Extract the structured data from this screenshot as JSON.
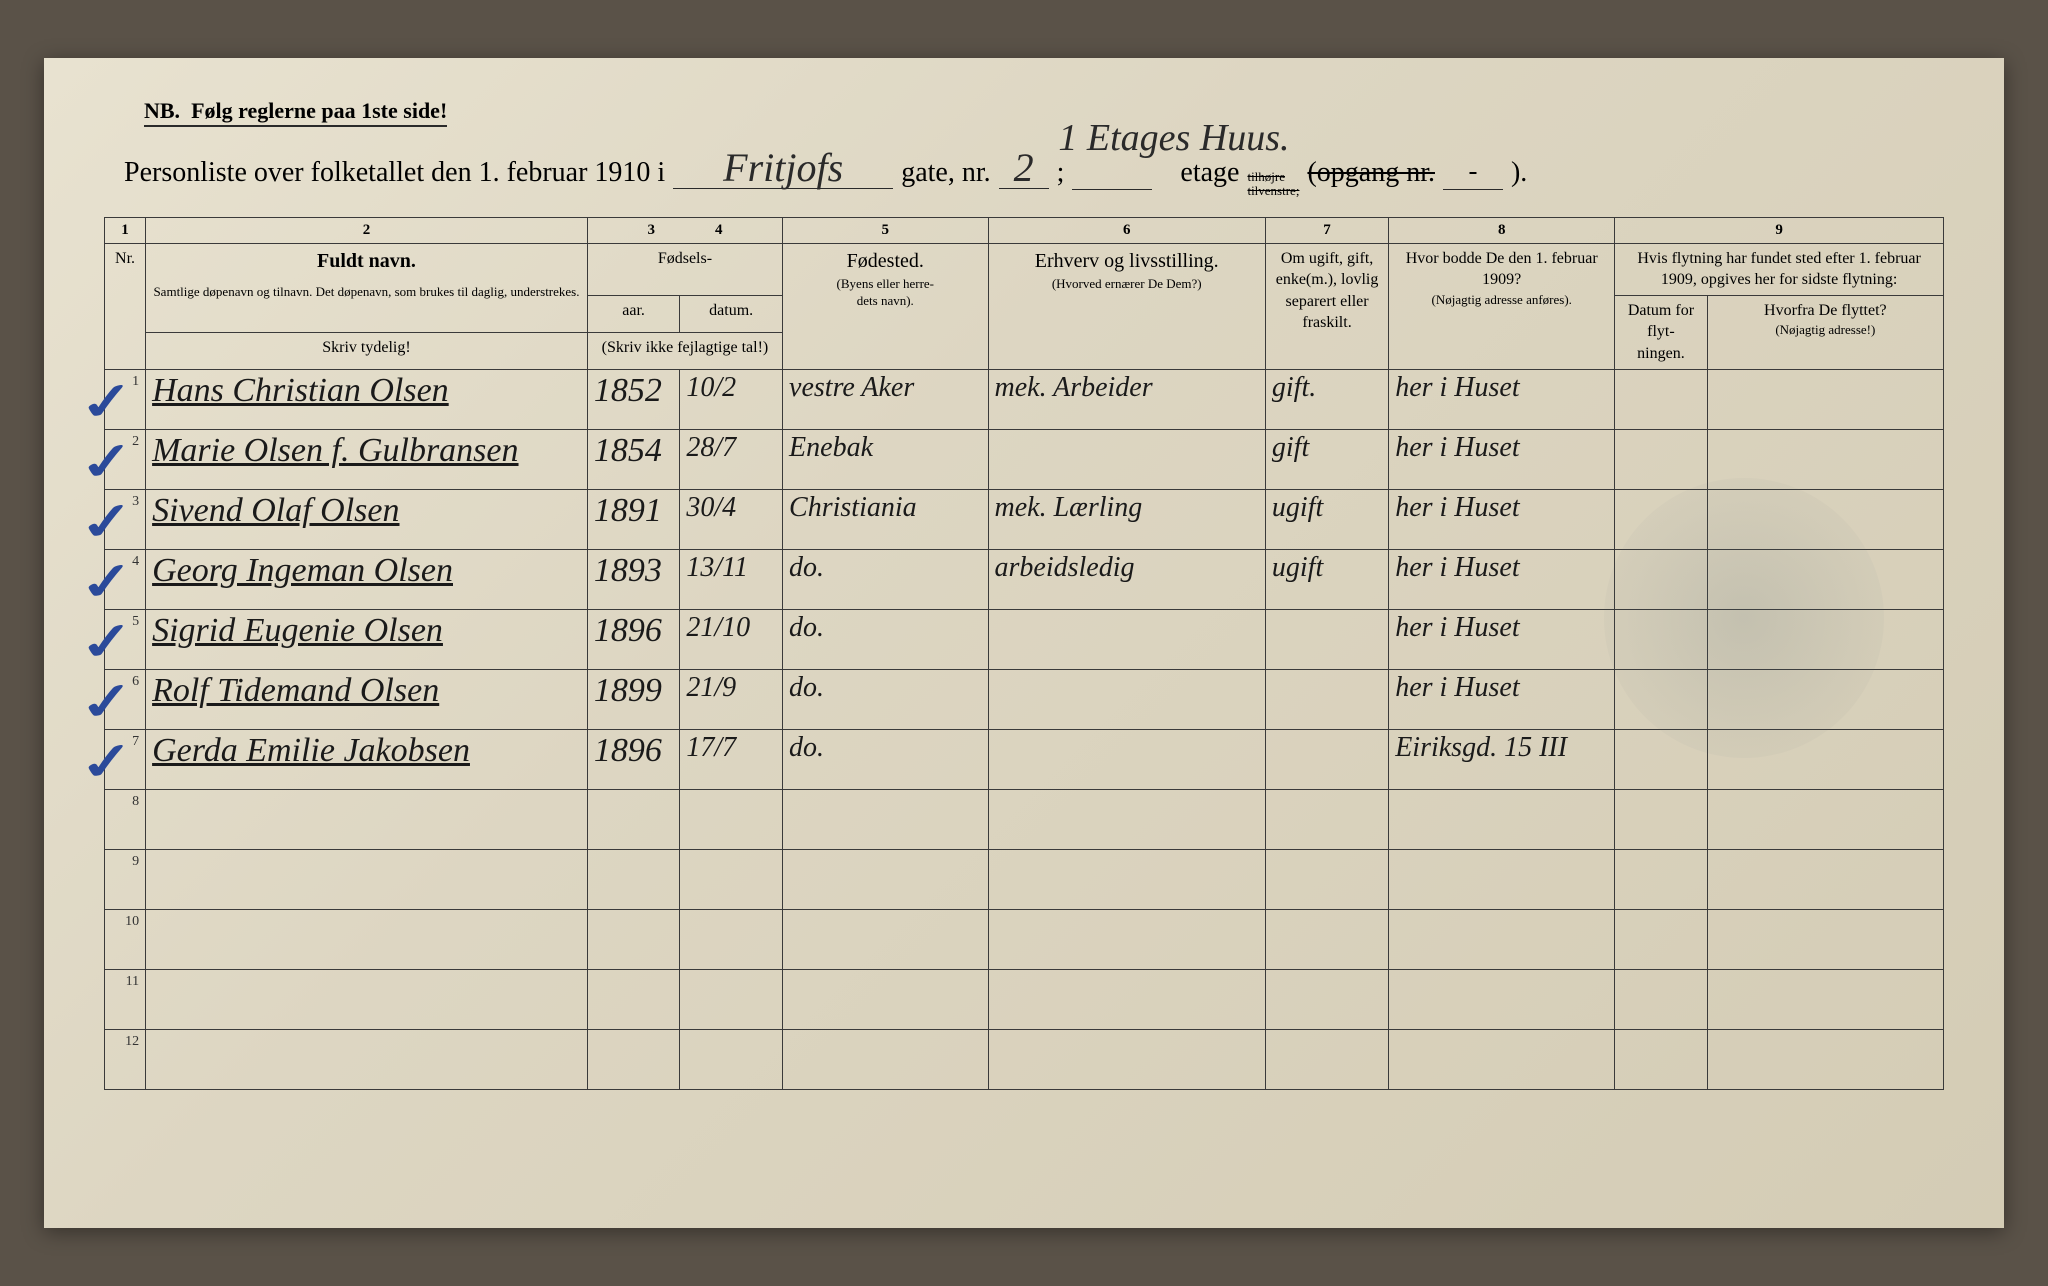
{
  "header_note_nb": "NB.",
  "header_note_text": "Følg reglerne paa 1ste side!",
  "title_prefix": "Personliste over folketallet den 1. februar 1910 i",
  "street_hand": "Fritjofs",
  "gate_label": "gate, nr.",
  "gate_nr_hand": "2",
  "etage_hand_above": "1 Etages Huus.",
  "etage_label": "etage",
  "etage_side_top": "tilhøjre",
  "etage_side_bot": "tilvenstre;",
  "opgang_label": "(opgang nr.",
  "opgang_end": ").",
  "col_nums": [
    "1",
    "2",
    "3",
    "4",
    "5",
    "6",
    "7",
    "8",
    "9"
  ],
  "headers": {
    "nr": "Nr.",
    "name_big": "Fuldt navn.",
    "name_sub1": "Samtlige døpenavn og tilnavn. Det døpenavn, som brukes til daglig, understrekes.",
    "name_hint": "Skriv tydelig!",
    "birth_group": "Fødsels-",
    "birth_year": "aar.",
    "birth_date": "datum.",
    "birth_note": "(Skriv ikke fejlagtige tal!)",
    "birthplace": "Fødested.",
    "birthplace_sub": "(Byens eller herre-\ndets navn).",
    "occupation": "Erhverv og livsstilling.",
    "occupation_sub": "(Hvorved ernærer De Dem?)",
    "marital": "Om ugift, gift, enke(m.), lovlig separert eller fraskilt.",
    "residence": "Hvor bodde De den 1. februar 1909?",
    "residence_sub": "(Nøjagtig adresse anføres).",
    "move_top": "Hvis flytning har fundet sted efter 1. februar 1909, opgives her for sidste flytning:",
    "move_date": "Datum for flyt-\nningen.",
    "move_from": "Hvorfra De flyttet?",
    "move_from_sub": "(Nøjagtig adresse!)"
  },
  "rows": [
    {
      "n": "1",
      "check": true,
      "name": "Hans Christian Olsen",
      "yr": "1852",
      "dt": "10/2",
      "bp": "vestre Aker",
      "occ": "mek. Arbeider",
      "ms": "gift.",
      "res": "her i Huset",
      "md": "",
      "mf": ""
    },
    {
      "n": "2",
      "check": true,
      "name": "Marie Olsen f. Gulbransen",
      "yr": "1854",
      "dt": "28/7",
      "bp": "Enebak",
      "occ": "",
      "ms": "gift",
      "res": "her i Huset",
      "md": "",
      "mf": ""
    },
    {
      "n": "3",
      "check": true,
      "name": "Sivend Olaf Olsen",
      "yr": "1891",
      "dt": "30/4",
      "bp": "Christiania",
      "occ": "mek. Lærling",
      "ms": "ugift",
      "res": "her i Huset",
      "md": "",
      "mf": ""
    },
    {
      "n": "4",
      "check": true,
      "name": "Georg Ingeman Olsen",
      "yr": "1893",
      "dt": "13/11",
      "bp": "do.",
      "occ": "arbeidsledig",
      "ms": "ugift",
      "res": "her i Huset",
      "md": "",
      "mf": ""
    },
    {
      "n": "5",
      "check": true,
      "name": "Sigrid Eugenie Olsen",
      "yr": "1896",
      "dt": "21/10",
      "bp": "do.",
      "occ": "",
      "ms": "",
      "res": "her i Huset",
      "md": "",
      "mf": ""
    },
    {
      "n": "6",
      "check": true,
      "name": "Rolf Tidemand Olsen",
      "yr": "1899",
      "dt": "21/9",
      "bp": "do.",
      "occ": "",
      "ms": "",
      "res": "her i Huset",
      "md": "",
      "mf": ""
    },
    {
      "n": "7",
      "check": true,
      "name": "Gerda Emilie Jakobsen",
      "yr": "1896",
      "dt": "17/7",
      "bp": "do.",
      "occ": "",
      "ms": "",
      "res": "Eiriksgd. 15 III",
      "md": "",
      "mf": ""
    },
    {
      "n": "8",
      "check": false,
      "name": "",
      "yr": "",
      "dt": "",
      "bp": "",
      "occ": "",
      "ms": "",
      "res": "",
      "md": "",
      "mf": ""
    },
    {
      "n": "9",
      "check": false,
      "name": "",
      "yr": "",
      "dt": "",
      "bp": "",
      "occ": "",
      "ms": "",
      "res": "",
      "md": "",
      "mf": ""
    },
    {
      "n": "10",
      "check": false,
      "name": "",
      "yr": "",
      "dt": "",
      "bp": "",
      "occ": "",
      "ms": "",
      "res": "",
      "md": "",
      "mf": ""
    },
    {
      "n": "11",
      "check": false,
      "name": "",
      "yr": "",
      "dt": "",
      "bp": "",
      "occ": "",
      "ms": "",
      "res": "",
      "md": "",
      "mf": ""
    },
    {
      "n": "12",
      "check": false,
      "name": "",
      "yr": "",
      "dt": "",
      "bp": "",
      "occ": "",
      "ms": "",
      "res": "",
      "md": "",
      "mf": ""
    }
  ],
  "colors": {
    "paper": "#e4ddc8",
    "ink": "#1a1a1a",
    "rule": "#3a3a3a",
    "blue_check": "#2b4a9a"
  }
}
